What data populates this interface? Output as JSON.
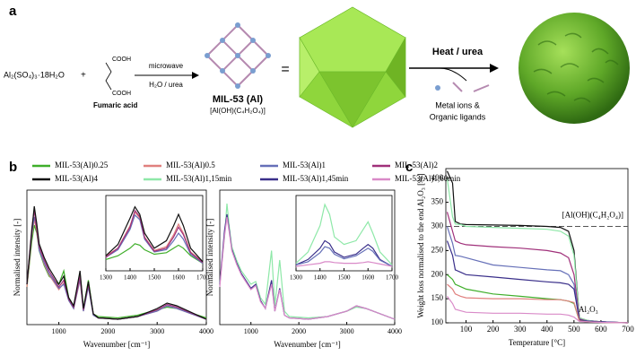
{
  "panels": {
    "a": "a",
    "b": "b",
    "c": "c"
  },
  "scheme": {
    "reactant": "Al₂(SO₄)₃·18H₂O",
    "plus": "+",
    "cooh_top": "COOH",
    "cooh_bottom": "COOH",
    "acid": "Fumaric acid",
    "condition_top": "microwave",
    "condition_bottom": "H₂O / urea",
    "product": "MIL-53 (Al)",
    "formula": "[Al(OH)(C₄H₂O₄)]",
    "equals": "=",
    "heat": "Heat / urea",
    "release_1": "Metal ions &",
    "release_2": "Organic ligands"
  },
  "chart_data": [
    {
      "type": "line",
      "xlabel": "Wavenumber [cm⁻¹]",
      "ylabel": "Normalised intensity [-]",
      "xlim": [
        350,
        4000
      ],
      "xticks": [
        1000,
        2000,
        3000,
        4000
      ],
      "ylim": [
        0,
        1
      ],
      "x": [
        350,
        450,
        500,
        550,
        600,
        700,
        800,
        1000,
        1100,
        1200,
        1300,
        1430,
        1500,
        1600,
        1700,
        1800,
        2200,
        2600,
        3000,
        3200,
        3400,
        4000
      ],
      "series": [
        {
          "name": "MIL-53(Al)0.25",
          "color": "#3fae2a",
          "values": [
            0.28,
            0.62,
            0.74,
            0.68,
            0.55,
            0.44,
            0.36,
            0.3,
            0.4,
            0.2,
            0.14,
            0.38,
            0.12,
            0.33,
            0.08,
            0.06,
            0.05,
            0.07,
            0.11,
            0.13,
            0.12,
            0.05
          ]
        },
        {
          "name": "MIL-53(Al)0.5",
          "color": "#e0807e",
          "values": [
            0.28,
            0.66,
            0.78,
            0.7,
            0.56,
            0.45,
            0.37,
            0.26,
            0.31,
            0.18,
            0.12,
            0.33,
            0.1,
            0.3,
            0.07,
            0.05,
            0.04,
            0.06,
            0.1,
            0.14,
            0.12,
            0.04
          ]
        },
        {
          "name": "MIL-53(Al)1",
          "color": "#6670b8",
          "values": [
            0.3,
            0.68,
            0.8,
            0.72,
            0.55,
            0.46,
            0.38,
            0.27,
            0.3,
            0.18,
            0.12,
            0.34,
            0.1,
            0.28,
            0.07,
            0.05,
            0.04,
            0.06,
            0.1,
            0.14,
            0.12,
            0.04
          ]
        },
        {
          "name": "MIL-53(Al)2",
          "color": "#a0307a",
          "values": [
            0.3,
            0.72,
            0.85,
            0.7,
            0.58,
            0.48,
            0.4,
            0.28,
            0.33,
            0.19,
            0.13,
            0.36,
            0.11,
            0.3,
            0.08,
            0.05,
            0.04,
            0.06,
            0.11,
            0.15,
            0.13,
            0.04
          ]
        },
        {
          "name": "MIL-53(Al)4",
          "color": "#111111",
          "values": [
            0.3,
            0.7,
            0.88,
            0.75,
            0.6,
            0.5,
            0.42,
            0.3,
            0.36,
            0.2,
            0.14,
            0.4,
            0.12,
            0.32,
            0.08,
            0.05,
            0.04,
            0.06,
            0.12,
            0.16,
            0.14,
            0.04
          ]
        }
      ]
    },
    {
      "type": "line",
      "xlim": [
        1300,
        1700
      ],
      "xticks": [
        1300,
        1400,
        1500,
        1600,
        1700
      ],
      "ylim": [
        0,
        1
      ],
      "x": [
        1300,
        1350,
        1400,
        1420,
        1440,
        1460,
        1500,
        1550,
        1580,
        1600,
        1620,
        1650,
        1700
      ],
      "series": [
        {
          "color": "#3fae2a",
          "values": [
            0.15,
            0.2,
            0.3,
            0.36,
            0.34,
            0.28,
            0.22,
            0.24,
            0.3,
            0.34,
            0.3,
            0.2,
            0.1
          ]
        },
        {
          "color": "#e0807e",
          "values": [
            0.2,
            0.3,
            0.6,
            0.78,
            0.7,
            0.45,
            0.27,
            0.32,
            0.48,
            0.62,
            0.5,
            0.25,
            0.12
          ]
        },
        {
          "color": "#6670b8",
          "values": [
            0.18,
            0.28,
            0.55,
            0.74,
            0.68,
            0.42,
            0.25,
            0.28,
            0.4,
            0.5,
            0.42,
            0.22,
            0.1
          ]
        },
        {
          "color": "#a0307a",
          "values": [
            0.18,
            0.3,
            0.58,
            0.8,
            0.72,
            0.44,
            0.26,
            0.3,
            0.45,
            0.58,
            0.48,
            0.24,
            0.11
          ]
        },
        {
          "color": "#111111",
          "values": [
            0.2,
            0.35,
            0.7,
            0.85,
            0.75,
            0.5,
            0.3,
            0.4,
            0.6,
            0.75,
            0.6,
            0.3,
            0.12
          ]
        }
      ]
    },
    {
      "type": "line",
      "xlabel": "Wavenumber [cm⁻¹]",
      "ylabel": "Normalised intensity [-]",
      "xlim": [
        350,
        4000
      ],
      "xticks": [
        1000,
        2000,
        3000,
        4000
      ],
      "ylim": [
        0,
        1
      ],
      "x": [
        350,
        450,
        500,
        550,
        600,
        700,
        800,
        1000,
        1100,
        1200,
        1300,
        1430,
        1500,
        1600,
        1700,
        1800,
        2200,
        2600,
        3000,
        3200,
        3400,
        4000
      ],
      "series": [
        {
          "name": "MIL-53(Al)1,15min",
          "color": "#8ee8a8",
          "values": [
            0.3,
            0.65,
            0.9,
            0.72,
            0.58,
            0.48,
            0.4,
            0.3,
            0.32,
            0.2,
            0.15,
            0.55,
            0.14,
            0.48,
            0.1,
            0.06,
            0.05,
            0.06,
            0.1,
            0.13,
            0.12,
            0.04
          ]
        },
        {
          "name": "MIL-53(Al)1,45min",
          "color": "#3a2f8a",
          "values": [
            0.3,
            0.7,
            0.82,
            0.7,
            0.56,
            0.46,
            0.38,
            0.27,
            0.3,
            0.18,
            0.12,
            0.33,
            0.1,
            0.27,
            0.07,
            0.05,
            0.04,
            0.06,
            0.1,
            0.14,
            0.12,
            0.04
          ]
        },
        {
          "name": "MIL-53(Al)1,60min",
          "color": "#d98ac8",
          "values": [
            0.28,
            0.66,
            0.8,
            0.68,
            0.55,
            0.45,
            0.37,
            0.26,
            0.29,
            0.17,
            0.12,
            0.3,
            0.1,
            0.26,
            0.07,
            0.05,
            0.04,
            0.06,
            0.1,
            0.14,
            0.12,
            0.04
          ]
        }
      ]
    },
    {
      "type": "line",
      "xlim": [
        1300,
        1700
      ],
      "xticks": [
        1300,
        1400,
        1500,
        1600,
        1700
      ],
      "ylim": [
        0,
        1
      ],
      "x": [
        1300,
        1350,
        1400,
        1420,
        1440,
        1460,
        1500,
        1550,
        1580,
        1600,
        1620,
        1650,
        1700
      ],
      "series": [
        {
          "color": "#8ee8a8",
          "values": [
            0.1,
            0.25,
            0.6,
            0.88,
            0.75,
            0.45,
            0.35,
            0.4,
            0.55,
            0.65,
            0.5,
            0.25,
            0.08
          ]
        },
        {
          "color": "#3a2f8a",
          "values": [
            0.08,
            0.15,
            0.3,
            0.4,
            0.36,
            0.25,
            0.18,
            0.22,
            0.3,
            0.35,
            0.3,
            0.15,
            0.06
          ]
        },
        {
          "color": "#6670b8",
          "values": [
            0.08,
            0.12,
            0.24,
            0.32,
            0.3,
            0.22,
            0.16,
            0.2,
            0.26,
            0.3,
            0.26,
            0.14,
            0.06
          ]
        },
        {
          "color": "#d98ac8",
          "values": [
            0.06,
            0.08,
            0.1,
            0.12,
            0.12,
            0.11,
            0.1,
            0.1,
            0.11,
            0.12,
            0.11,
            0.09,
            0.06
          ]
        }
      ]
    },
    {
      "type": "line",
      "xlabel": "Temperature [°C]",
      "ylabel": "Weight loss normalised to the end Al₂O₃ [%]",
      "xlim": [
        25,
        700
      ],
      "xticks": [
        100,
        200,
        300,
        400,
        500,
        600,
        700
      ],
      "ylim": [
        100,
        420
      ],
      "yticks": [
        100,
        150,
        200,
        250,
        300,
        350,
        400
      ],
      "reference_line": {
        "value": 300,
        "label": "[Al(OH)(C₄H₂O₄)]"
      },
      "annotation": "Al₂O₃",
      "x": [
        30,
        50,
        60,
        80,
        100,
        200,
        300,
        400,
        450,
        480,
        500,
        520,
        550,
        600,
        700
      ],
      "series": [
        {
          "color": "#111111",
          "values": [
            415,
            390,
            310,
            305,
            304,
            303,
            302,
            300,
            298,
            290,
            250,
            110,
            105,
            102,
            100
          ]
        },
        {
          "color": "#8ee8a8",
          "values": [
            400,
            320,
            305,
            304,
            300,
            298,
            296,
            294,
            290,
            280,
            240,
            110,
            105,
            102,
            100
          ]
        },
        {
          "color": "#a0307a",
          "values": [
            330,
            290,
            270,
            265,
            262,
            258,
            255,
            250,
            245,
            235,
            200,
            108,
            104,
            102,
            100
          ]
        },
        {
          "color": "#6670b8",
          "values": [
            300,
            265,
            240,
            238,
            235,
            220,
            215,
            210,
            208,
            200,
            180,
            106,
            104,
            102,
            100
          ]
        },
        {
          "color": "#3a2f8a",
          "values": [
            270,
            240,
            210,
            205,
            200,
            195,
            190,
            185,
            183,
            180,
            170,
            106,
            103,
            102,
            100
          ]
        },
        {
          "color": "#3fae2a",
          "values": [
            200,
            190,
            180,
            175,
            170,
            160,
            155,
            150,
            148,
            145,
            140,
            104,
            102,
            101,
            100
          ]
        },
        {
          "color": "#e0807e",
          "values": [
            180,
            170,
            160,
            155,
            152,
            150,
            150,
            148,
            148,
            145,
            142,
            104,
            102,
            101,
            100
          ]
        },
        {
          "color": "#d98ac8",
          "values": [
            155,
            140,
            128,
            125,
            122,
            120,
            120,
            118,
            118,
            116,
            112,
            103,
            102,
            101,
            100
          ]
        }
      ]
    }
  ]
}
